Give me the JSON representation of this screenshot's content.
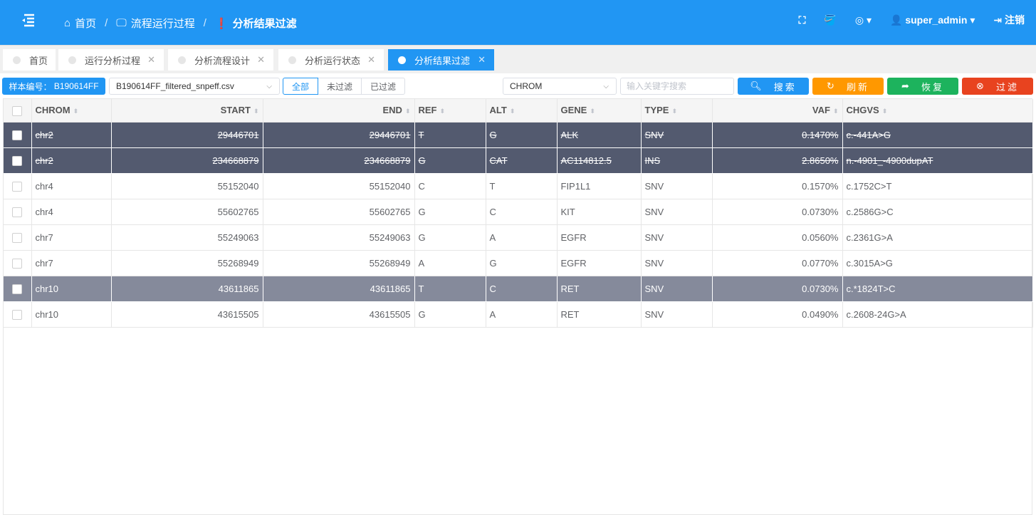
{
  "header": {
    "breadcrumb": [
      "首页",
      "流程运行过程",
      "分析结果过滤"
    ],
    "user": "super_admin",
    "logout": "注销"
  },
  "tabs": [
    {
      "label": "首页"
    },
    {
      "label": "运行分析过程"
    },
    {
      "label": "分析流程设计"
    },
    {
      "label": "分析运行状态"
    },
    {
      "label": "分析结果过滤",
      "active": true
    }
  ],
  "toolbar": {
    "sample_label": "样本编号：",
    "sample_id": "B190614FF",
    "file": "B190614FF_filtered_snpeff.csv",
    "filters": [
      "全部",
      "未过滤",
      "已过滤"
    ],
    "active_filter": "全部",
    "field": "CHROM",
    "search_placeholder": "输入关键字搜索",
    "search": "搜索",
    "refresh": "刷新",
    "restore": "恢复",
    "filter": "过滤",
    "colors": {
      "search": "#2196f3",
      "refresh": "#ff9800",
      "restore": "#1db35d",
      "filter": "#e8431f"
    }
  },
  "table": {
    "columns": [
      "CHROM",
      "START",
      "END",
      "REF",
      "ALT",
      "GENE",
      "TYPE",
      "VAF",
      "CHGVS"
    ],
    "rows": [
      [
        "chr2",
        "29446701",
        "29446701",
        "T",
        "G",
        "ALK",
        "SNV",
        "0.1470%",
        "c.-441A>G",
        "filtered"
      ],
      [
        "chr2",
        "234668879",
        "234668879",
        "G",
        "CAT",
        "AC114812.5",
        "INS",
        "2.8650%",
        "n.-4901_-4900dupAT",
        "filtered"
      ],
      [
        "chr4",
        "55152040",
        "55152040",
        "C",
        "T",
        "FIP1L1",
        "SNV",
        "0.1570%",
        "c.1752C>T",
        ""
      ],
      [
        "chr4",
        "55602765",
        "55602765",
        "G",
        "C",
        "KIT",
        "SNV",
        "0.0730%",
        "c.2586G>C",
        ""
      ],
      [
        "chr7",
        "55249063",
        "55249063",
        "G",
        "A",
        "EGFR",
        "SNV",
        "0.0560%",
        "c.2361G>A",
        ""
      ],
      [
        "chr7",
        "55268949",
        "55268949",
        "A",
        "G",
        "EGFR",
        "SNV",
        "0.0770%",
        "c.3015A>G",
        ""
      ],
      [
        "chr10",
        "43611865",
        "43611865",
        "T",
        "C",
        "RET",
        "SNV",
        "0.0730%",
        "c.*1824T>C",
        "selected"
      ],
      [
        "chr10",
        "43615505",
        "43615505",
        "G",
        "A",
        "RET",
        "SNV",
        "0.0490%",
        "c.2608-24G>A",
        ""
      ]
    ]
  }
}
